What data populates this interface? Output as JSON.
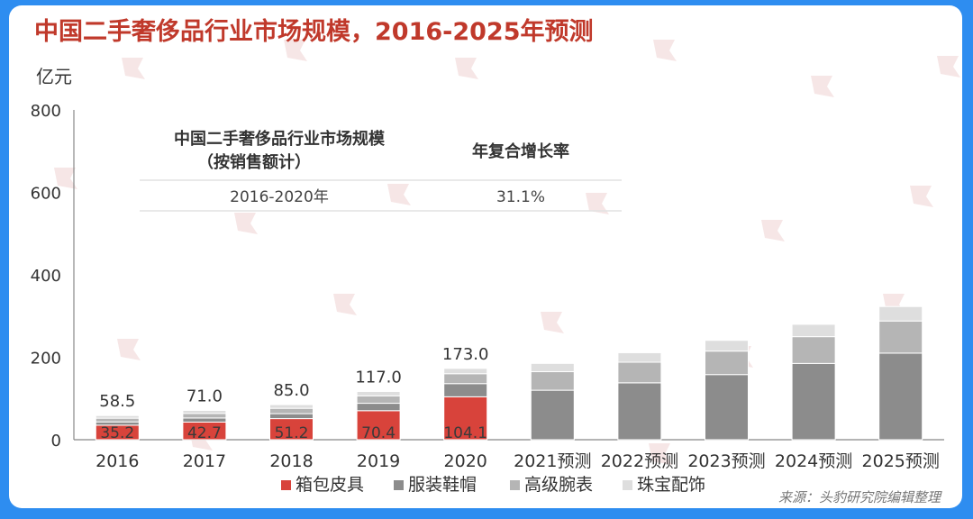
{
  "page": {
    "title": "中国二手奢侈品行业市场规模，2016-2025年预测",
    "source": "来源：头豹研究院编辑整理"
  },
  "colors": {
    "title": "#c0392b",
    "bag": "#d8433b",
    "clothing": "#8c8c8c",
    "watch": "#b5b5b5",
    "jewelry": "#dedede",
    "axis": "#888888",
    "text": "#333333",
    "frame": "#2e8df0"
  },
  "chart_data": {
    "type": "bar",
    "stacked": true,
    "title": "中国二手奢侈品行业市场规模，2016-2025年预测",
    "ylabel": "亿元",
    "ylim": [
      0,
      800
    ],
    "yticks": [
      0,
      200,
      400,
      600,
      800
    ],
    "grid": false,
    "legend_position": "bottom",
    "categories": [
      "2016",
      "2017",
      "2018",
      "2019",
      "2020",
      "2021预测",
      "2022预测",
      "2023预测",
      "2024预测",
      "2025预测"
    ],
    "series": [
      {
        "name": "箱包皮具",
        "values": [
          35.2,
          42.7,
          51.2,
          70.4,
          104.1,
          null,
          null,
          null,
          null,
          null
        ]
      },
      {
        "name": "服装鞋帽",
        "values": [
          8,
          10,
          12,
          18,
          32,
          120,
          138,
          158,
          185,
          210
        ]
      },
      {
        "name": "高级腕表",
        "values": [
          9,
          11,
          13,
          18,
          24,
          45,
          50,
          57,
          65,
          78
        ]
      },
      {
        "name": "珠宝配饰",
        "values": [
          6.3,
          7.3,
          8.8,
          10.6,
          12.9,
          20,
          23,
          26,
          30,
          35
        ]
      }
    ],
    "forecast_series": "服装鞋帽",
    "totals": [
      "58.5",
      "71.0",
      "85.0",
      "117.0",
      "173.0",
      null,
      null,
      null,
      null,
      null
    ],
    "bag_labels": [
      "35.2",
      "42.7",
      "51.2",
      "70.4",
      "104.1",
      null,
      null,
      null,
      null,
      null
    ],
    "table": {
      "header_left_1": "中国二手奢侈品行业市场规模",
      "header_left_2": "（按销售额计）",
      "header_right": "年复合增长率",
      "period": "2016-2020年",
      "cagr": "31.1%"
    }
  }
}
